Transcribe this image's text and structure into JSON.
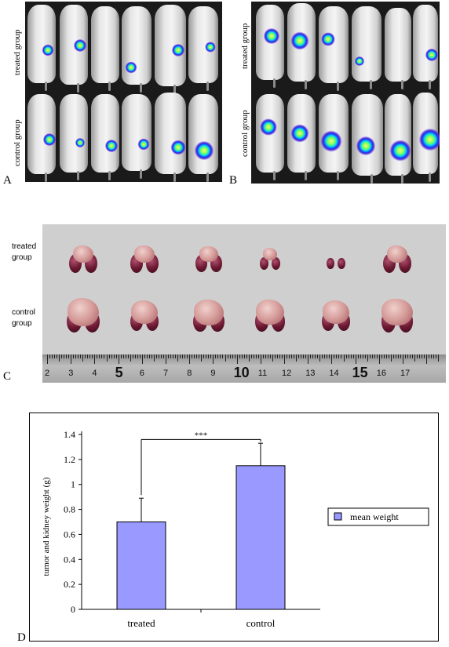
{
  "panel_labels": {
    "a": "A",
    "b": "B",
    "c": "C",
    "d": "D"
  },
  "panel_a": {
    "top_label": "treated group",
    "bottom_label": "control group"
  },
  "panel_b": {
    "top_label": "treated group",
    "bottom_label": "control group"
  },
  "panel_c": {
    "row1_label_line1": "treated",
    "row1_label_line2": "group",
    "row2_label_line1": "control",
    "row2_label_line2": "group",
    "ruler_numbers": [
      "2",
      "3",
      "4",
      "5",
      "6",
      "7",
      "8",
      "9",
      "10",
      "11",
      "12",
      "13",
      "14",
      "15",
      "16",
      "17"
    ]
  },
  "chart_data": {
    "type": "bar",
    "categories": [
      "treated",
      "control"
    ],
    "series": [
      {
        "name": "mean weight",
        "values": [
          0.7,
          1.15
        ],
        "error": [
          0.19,
          0.18
        ]
      }
    ],
    "ylabel": "tumor and kidney weight (g)",
    "ylim": [
      0,
      1.4
    ],
    "yticks": [
      "0",
      "0.2",
      "0.4",
      "0.6",
      "0.8",
      "1",
      "1.2",
      "1.4"
    ],
    "significance": "***",
    "bar_color": "#9999ff",
    "legend_position": "right"
  }
}
